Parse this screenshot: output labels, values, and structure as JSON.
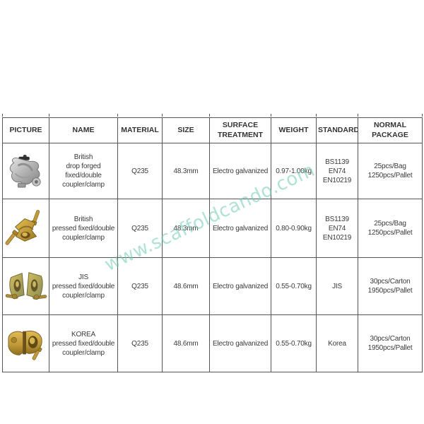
{
  "watermark": {
    "text": "www.scaffoldcando.com",
    "color": "#6fcbb4"
  },
  "table": {
    "headers": [
      {
        "id": "picture",
        "label": "PICTURE"
      },
      {
        "id": "name",
        "label": "NAME"
      },
      {
        "id": "material",
        "label": "MATERIAL"
      },
      {
        "id": "size",
        "label": "SIZE"
      },
      {
        "id": "surface_treatment",
        "label": "SURFACE\nTREATMENT"
      },
      {
        "id": "weight",
        "label": "WEIGHT"
      },
      {
        "id": "standard",
        "label": "STANDARD"
      },
      {
        "id": "normal_package",
        "label": "NORMAL\nPACKAGE"
      }
    ],
    "rows": [
      {
        "picture_icon": "british-drop-forged-coupler-photo",
        "name": "British\ndrop forged\nfixed/double\ncoupler/clamp",
        "material": "Q235",
        "size": "48.3mm",
        "surface_treatment": "Electro galvanized",
        "weight": "0.97-1.00kg",
        "standard": "BS1139\nEN74\nEN10219",
        "normal_package": "25pcs/Bag\n1250pcs/Pallet"
      },
      {
        "picture_icon": "british-pressed-coupler-photo",
        "name": "British\npressed fixed/double\ncoupler/clamp",
        "material": "Q235",
        "size": "48.3mm",
        "surface_treatment": "Electro galvanized",
        "weight": "0.80-0.90kg",
        "standard": "BS1139\nEN74\nEN10219",
        "normal_package": "25pcs/Bag\n1250pcs/Pallet"
      },
      {
        "picture_icon": "jis-pressed-coupler-photo",
        "name": "JIS\npressed fixed/double\ncoupler/clamp",
        "material": "Q235",
        "size": "48.6mm",
        "surface_treatment": "Electro galvanized",
        "weight": "0.55-0.70kg",
        "standard": "JIS",
        "normal_package": "30pcs/Carton\n1950pcs/Pallet"
      },
      {
        "picture_icon": "korea-pressed-coupler-photo",
        "name": "KOREA\npressed fixed/double\ncoupler/clamp",
        "material": "Q235",
        "size": "48.6mm",
        "surface_treatment": "Electro galvanized",
        "weight": "0.55-0.70kg",
        "standard": "Korea",
        "normal_package": "30pcs/Carton\n1950pcs/Pallet"
      }
    ]
  }
}
